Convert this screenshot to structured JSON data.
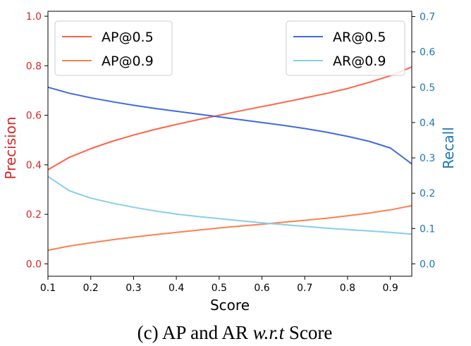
{
  "chart_data": {
    "type": "line",
    "title": "",
    "xlabel": "Score",
    "ylabel_left": "Precision",
    "ylabel_right": "Recall",
    "xlim": [
      0.1,
      0.95
    ],
    "ylim_left": [
      -0.05,
      1.02
    ],
    "ylim_right": [
      -0.035,
      0.715
    ],
    "x_ticks": [
      "0.1",
      "0.2",
      "0.3",
      "0.4",
      "0.5",
      "0.6",
      "0.7",
      "0.8",
      "0.9"
    ],
    "y_left_ticks": [
      "0.0",
      "0.2",
      "0.4",
      "0.6",
      "0.8",
      "1.0"
    ],
    "y_right_ticks": [
      "0.0",
      "0.1",
      "0.2",
      "0.3",
      "0.4",
      "0.5",
      "0.6",
      "0.7"
    ],
    "grid": false,
    "colors": {
      "left_axis": "#d62728",
      "right_axis": "#1f77b4"
    },
    "series": [
      {
        "name": "AP@0.5",
        "axis": "left",
        "color": "#ff6347",
        "x": [
          0.1,
          0.15,
          0.2,
          0.25,
          0.3,
          0.35,
          0.4,
          0.45,
          0.5,
          0.55,
          0.6,
          0.65,
          0.7,
          0.75,
          0.8,
          0.85,
          0.9,
          0.95
        ],
        "y": [
          0.38,
          0.43,
          0.465,
          0.495,
          0.52,
          0.543,
          0.563,
          0.582,
          0.6,
          0.618,
          0.635,
          0.652,
          0.67,
          0.688,
          0.708,
          0.733,
          0.76,
          0.795
        ]
      },
      {
        "name": "AP@0.9",
        "legend_label": "AP@0.9",
        "axis": "left",
        "color": "#ff7f50",
        "x": [
          0.1,
          0.15,
          0.2,
          0.25,
          0.3,
          0.35,
          0.4,
          0.45,
          0.5,
          0.55,
          0.6,
          0.65,
          0.7,
          0.75,
          0.8,
          0.85,
          0.9,
          0.95
        ],
        "y": [
          0.055,
          0.072,
          0.085,
          0.097,
          0.108,
          0.118,
          0.127,
          0.136,
          0.145,
          0.153,
          0.16,
          0.168,
          0.176,
          0.184,
          0.194,
          0.205,
          0.218,
          0.235
        ]
      },
      {
        "name": "AR@0.5",
        "axis": "right",
        "color": "#4169e1",
        "x": [
          0.1,
          0.15,
          0.2,
          0.25,
          0.3,
          0.35,
          0.4,
          0.45,
          0.5,
          0.55,
          0.6,
          0.65,
          0.7,
          0.75,
          0.8,
          0.85,
          0.9,
          0.95
        ],
        "y": [
          0.5,
          0.483,
          0.47,
          0.459,
          0.449,
          0.44,
          0.432,
          0.424,
          0.416,
          0.408,
          0.4,
          0.392,
          0.383,
          0.373,
          0.361,
          0.347,
          0.328,
          0.283
        ]
      },
      {
        "name": "AR@0.9",
        "axis": "right",
        "color": "#87ceeb",
        "x": [
          0.1,
          0.15,
          0.2,
          0.25,
          0.3,
          0.35,
          0.4,
          0.45,
          0.5,
          0.55,
          0.6,
          0.65,
          0.7,
          0.75,
          0.8,
          0.85,
          0.9,
          0.95
        ],
        "y": [
          0.247,
          0.207,
          0.186,
          0.172,
          0.16,
          0.15,
          0.141,
          0.134,
          0.128,
          0.122,
          0.116,
          0.111,
          0.106,
          0.101,
          0.097,
          0.093,
          0.089,
          0.084
        ]
      }
    ]
  },
  "caption": {
    "prefix": "(c) AP and AR ",
    "italic": "w.r.t",
    "suffix": " Score"
  }
}
